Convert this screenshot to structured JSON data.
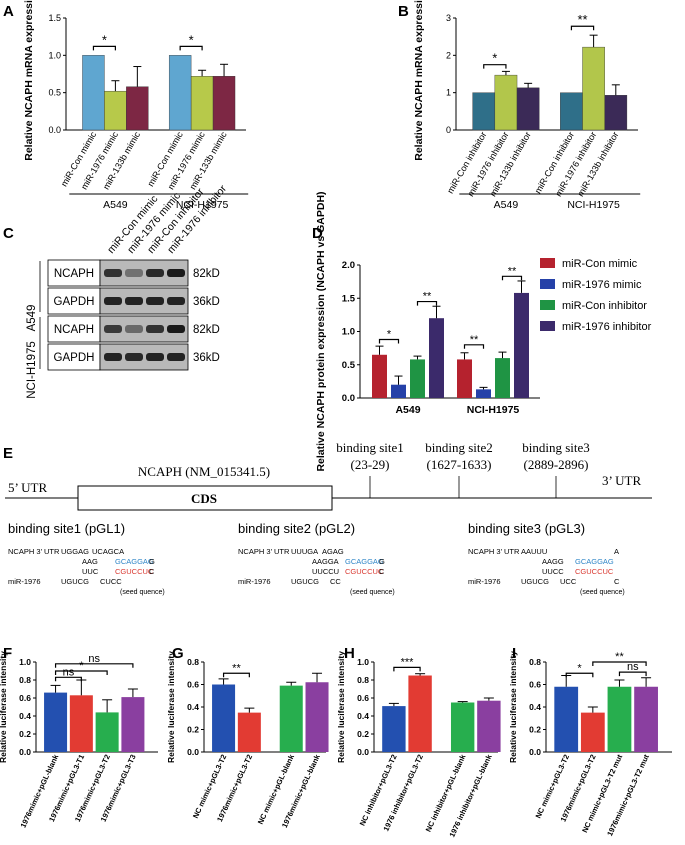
{
  "panel_labels": {
    "a": "A",
    "b": "B",
    "c": "C",
    "d": "D",
    "e": "E",
    "f": "F",
    "g": "G",
    "h": "H",
    "i": "I"
  },
  "colors": {
    "a_mimic": [
      "#5fa6d0",
      "#b7c94a",
      "#7d2744"
    ],
    "b_inhibitor": [
      "#2f6f89",
      "#b2c64b",
      "#3b2a57"
    ],
    "d": [
      "#b5222e",
      "#2541a8",
      "#1f9444",
      "#3b2a6b"
    ],
    "fghi": [
      "#2350b0",
      "#e23b33",
      "#27ae4e",
      "#8a3fa0"
    ],
    "blue": "#2f86c7",
    "red": "#d9372f"
  },
  "blot": {
    "lanes": [
      "miR-Con mimic",
      "miR-1976 mimic",
      "miR-Con inhibitor",
      "miR-1976 inhibitor"
    ],
    "groups": [
      "A549",
      "NCI-H1975"
    ],
    "rows": [
      {
        "label": "NCAPH",
        "kd": "82kD"
      },
      {
        "label": "GAPDH",
        "kd": "36kD"
      },
      {
        "label": "NCAPH",
        "kd": "82kD"
      },
      {
        "label": "GAPDH",
        "kd": "36kD"
      }
    ]
  },
  "schematic": {
    "utr5": "5’ UTR",
    "utr3": "3’ UTR",
    "gene": "NCAPH (NM_015341.5)",
    "cds": "CDS",
    "sites": [
      {
        "title": "binding site1",
        "range": "(23-29)"
      },
      {
        "title": "binding site2",
        "range": "(1627-1633)"
      },
      {
        "title": "binding site3",
        "range": "(2889-2896)"
      }
    ],
    "alignments": [
      {
        "title": "binding site1 (pGL1)",
        "utr_label": "NCAPH 3’ UTR",
        "mir_label": "miR-1976",
        "top": "UGGAG",
        "top2": "UCAGCA",
        "mid1": "AAG",
        "mid2": "UUC",
        "seed_top": "GCAGGAG",
        "seed_top_end": "G",
        "seed_bot": "CGUCCUC",
        "seed_bot_end": "C",
        "bot1": "UGUCG",
        "bot2": "CUCC",
        "seed_note": "(seed quence)"
      },
      {
        "title": "binding site2 (pGL2)",
        "utr_label": "NCAPH 3’ UTR",
        "mir_label": "miR-1976",
        "top": "UUUGA",
        "top2": "AGAG",
        "mid1": "AAGGA",
        "mid2": "UUCCU",
        "seed_top": "GCAGGAG",
        "seed_top_end": "G",
        "seed_bot": "CGUCCUC",
        "seed_bot_end": "C",
        "bot1": "UGUCG",
        "bot2": "CC",
        "seed_note": "(seed quence)"
      },
      {
        "title": "binding site3 (pGL3)",
        "utr_label": "NCAPH 3’ UTR",
        "mir_label": "miR-1976",
        "top": "AAUUU",
        "top2": "A",
        "mid1": "AAGG",
        "mid2": "UUCC",
        "seed_top": "GCAGGAG",
        "seed_top_end": "",
        "seed_bot": "CGUCCUC",
        "seed_bot_end": "",
        "bot1": "UGUCG",
        "bot2": "UCC",
        "bot3": "C",
        "seed_note": "(seed quence)"
      }
    ]
  },
  "chart_data": [
    {
      "id": "A",
      "type": "bar",
      "ylabel": "Relative NCAPH mRNA expression",
      "ylim": [
        0,
        1.5
      ],
      "yticks": [
        "0.0",
        "0.5",
        "1.0",
        "1.5"
      ],
      "categories": [
        "miR-Con mimic",
        "miR-1976 mimic",
        "miR-133b mimic",
        "miR-Con mimic",
        "miR-1976 mimic",
        "miR-133b mimic"
      ],
      "values": [
        1.0,
        0.52,
        0.58,
        1.0,
        0.72,
        0.72
      ],
      "errors": [
        0,
        0.14,
        0.27,
        0,
        0.08,
        0.16
      ],
      "groups": [
        {
          "label": "A549",
          "from": 0,
          "to": 2
        },
        {
          "label": "NCI-H1975",
          "from": 3,
          "to": 5
        }
      ],
      "sig": [
        {
          "from": 0,
          "to": 1,
          "label": "*",
          "y": 1.12
        },
        {
          "from": 3,
          "to": 4,
          "label": "*",
          "y": 1.12
        }
      ]
    },
    {
      "id": "B",
      "type": "bar",
      "ylabel": "Relative NCAPH mRNA expression",
      "ylim": [
        0,
        3
      ],
      "yticks": [
        "0",
        "1",
        "2",
        "3"
      ],
      "categories": [
        "miR-Con inhibitor",
        "miR-1976 inhibitor",
        "miR-133b inhibitor",
        "miR-Con inhibitor",
        "miR-1976 inhibitor",
        "miR-133b inhibitor"
      ],
      "values": [
        1.0,
        1.47,
        1.13,
        1.0,
        2.22,
        0.93
      ],
      "errors": [
        0,
        0.1,
        0.12,
        0,
        0.32,
        0.28
      ],
      "groups": [
        {
          "label": "A549",
          "from": 0,
          "to": 2
        },
        {
          "label": "NCI-H1975",
          "from": 3,
          "to": 5
        }
      ],
      "sig": [
        {
          "from": 0,
          "to": 1,
          "label": "*",
          "y": 1.75
        },
        {
          "from": 3,
          "to": 4,
          "label": "**",
          "y": 2.78
        }
      ]
    },
    {
      "id": "D",
      "type": "bar",
      "ylabel": "Relative NCAPH protein expression (NCAPH vs GAPDH)",
      "ylim": [
        0,
        2.0
      ],
      "yticks": [
        "0.0",
        "0.5",
        "1.0",
        "1.5",
        "2.0"
      ],
      "categories": [
        "A549",
        "NCI-H1975"
      ],
      "series": [
        {
          "name": "miR-Con mimic",
          "values": [
            0.65,
            0.58
          ],
          "errors": [
            0.13,
            0.1
          ]
        },
        {
          "name": "miR-1976 mimic",
          "values": [
            0.2,
            0.13
          ],
          "errors": [
            0.13,
            0.03
          ]
        },
        {
          "name": "miR-Con inhibitor",
          "values": [
            0.58,
            0.6
          ],
          "errors": [
            0.05,
            0.09
          ]
        },
        {
          "name": "miR-1976 inhibitor",
          "values": [
            1.2,
            1.58
          ],
          "errors": [
            0.18,
            0.18
          ]
        }
      ],
      "sig": [
        {
          "cat": 0,
          "from": 0,
          "to": 1,
          "label": "*",
          "y": 0.88
        },
        {
          "cat": 0,
          "from": 2,
          "to": 3,
          "label": "**",
          "y": 1.45
        },
        {
          "cat": 1,
          "from": 0,
          "to": 1,
          "label": "**",
          "y": 0.8
        },
        {
          "cat": 1,
          "from": 2,
          "to": 3,
          "label": "**",
          "y": 1.83
        }
      ]
    },
    {
      "id": "F",
      "type": "bar",
      "ylabel": "Relative luciferase intensity",
      "ylim": [
        0,
        1.0
      ],
      "yticks": [
        "0.0",
        "0.2",
        "0.4",
        "0.6",
        "0.8",
        "1.0"
      ],
      "categories": [
        "1976mimic+pGL-blank",
        "1976mimic+pGL3-T1",
        "1976mimic+pGL3-T2",
        "1976mimic+pGL3-T3"
      ],
      "values": [
        0.66,
        0.63,
        0.44,
        0.61
      ],
      "errors": [
        0.08,
        0.17,
        0.14,
        0.09
      ],
      "gaps": [
        0,
        0,
        0,
        0
      ],
      "sig": [
        {
          "from": 0,
          "to": 1,
          "label": "ns",
          "y": 0.83
        },
        {
          "from": 0,
          "to": 2,
          "label": "*",
          "y": 0.9
        },
        {
          "from": 0,
          "to": 3,
          "label": "ns",
          "y": 0.98
        }
      ]
    },
    {
      "id": "G",
      "type": "bar",
      "ylabel": "Relative luciferase intensity",
      "ylim": [
        0,
        0.8
      ],
      "yticks": [
        "0.0",
        "0.2",
        "0.4",
        "0.6",
        "0.8"
      ],
      "categories": [
        "NC mimic+pGL3-T2",
        "1976mimic+pGL3-T2",
        "NC mimic+pGL-blank",
        "1976mimic+pGL-blank"
      ],
      "values": [
        0.6,
        0.35,
        0.59,
        0.62
      ],
      "errors": [
        0.05,
        0.04,
        0.03,
        0.08
      ],
      "gaps": [
        0,
        0,
        1,
        1
      ],
      "sig": [
        {
          "from": 0,
          "to": 1,
          "label": "**",
          "y": 0.7
        }
      ]
    },
    {
      "id": "H",
      "type": "bar",
      "ylabel": "Relative luciferase intensity",
      "ylim": [
        0,
        1.0
      ],
      "yticks": [
        "0.0",
        "0.2",
        "0.4",
        "0.6",
        "0.8",
        "1.0"
      ],
      "categories": [
        "NC inhibitor+pGL3-T2",
        "1976 inhibitor+pGL3-T2",
        "NC inhibitor+pGL-blank",
        "1976 inhibitor+pGL-blank"
      ],
      "values": [
        0.51,
        0.85,
        0.55,
        0.57
      ],
      "errors": [
        0.03,
        0.02,
        0.01,
        0.03
      ],
      "gaps": [
        0,
        0,
        1,
        1
      ],
      "sig": [
        {
          "from": 0,
          "to": 1,
          "label": "***",
          "y": 0.94
        }
      ]
    },
    {
      "id": "I",
      "type": "bar",
      "ylabel": "Relative luciferase intensity",
      "ylim": [
        0,
        0.8
      ],
      "yticks": [
        "0.0",
        "0.2",
        "0.4",
        "0.6",
        "0.8"
      ],
      "categories": [
        "NC mimic+pGL3-T2",
        "1976mimic+pGL3-T2",
        "NC mimic+pGL3-T2 mut",
        "1976mimic+pGL3-T2 mut"
      ],
      "values": [
        0.58,
        0.35,
        0.58,
        0.58
      ],
      "errors": [
        0.1,
        0.05,
        0.06,
        0.08
      ],
      "gaps": [
        0,
        0,
        0,
        0
      ],
      "sig": [
        {
          "from": 0,
          "to": 1,
          "label": "*",
          "y": 0.7
        },
        {
          "from": 1,
          "to": 3,
          "label": "**",
          "y": 0.8
        },
        {
          "from": 2,
          "to": 3,
          "label": "ns",
          "y": 0.71
        }
      ]
    }
  ]
}
